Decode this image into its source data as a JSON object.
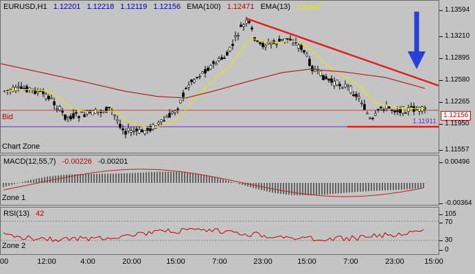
{
  "main": {
    "symbol": "EURUSD,H1",
    "open": "1.12201",
    "high": "1.12218",
    "low": "1.12119",
    "close": "1.12156",
    "ema100_label": "EMA(100)",
    "ema100_value": "1.12471",
    "ema13_label": "EMA(13)",
    "ema13_value": "1.1219",
    "bid_label": "Bid",
    "zone_label": "Chart Zone",
    "current_price": "1.12156",
    "support_price": "1.11911",
    "price_ticks": [
      "1.13594",
      "1.13210",
      "1.12895",
      "1.12580",
      "1.12265",
      "1.11950",
      "1.11557"
    ],
    "colors": {
      "bull": "#000000",
      "bear": "#000000",
      "ema100": "#b22222",
      "ema13": "#e6e600",
      "trendline": "#e02020",
      "arrow": "#2a3fd6",
      "bid_line": "#c04040",
      "support_line": "#6a2cb8"
    }
  },
  "macd": {
    "label": "MACD(12,55,7)",
    "value1": "-0.00226",
    "value2": "-0.00201",
    "zone_label": "Zone 1",
    "ticks": [
      "0.00496",
      "-0.00364"
    ]
  },
  "rsi": {
    "label": "RSI(13)",
    "value": "42",
    "zone_label": "Zone 2",
    "ticks": [
      "105",
      "70",
      "30",
      "0"
    ]
  },
  "time_axis": [
    "00",
    "12:00",
    "4:00",
    "20:00",
    "15:00",
    "7:00",
    "23:00",
    "15:00",
    "7:00",
    "23:00",
    "15:00"
  ]
}
